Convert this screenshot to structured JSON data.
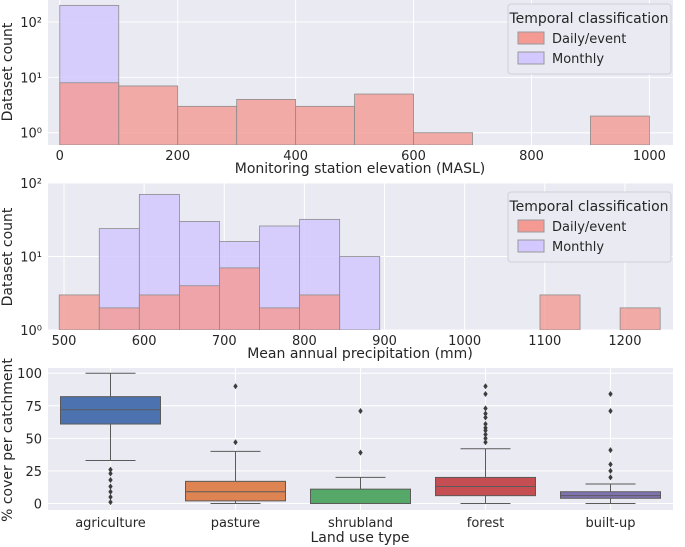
{
  "chart_data": [
    {
      "type": "bar",
      "subtype": "histogram",
      "xlabel": "Monitoring station elevation (MASL)",
      "ylabel": "Dataset count",
      "yscale": "log",
      "ylim": [
        0.6,
        250
      ],
      "xlim": [
        -20,
        1040
      ],
      "x_ticks": [
        0,
        200,
        400,
        600,
        800,
        1000
      ],
      "y_ticks": [
        {
          "value": 1,
          "label": "10⁰"
        },
        {
          "value": 10,
          "label": "10¹"
        },
        {
          "value": 100,
          "label": "10²"
        }
      ],
      "legend": {
        "title": "Temporal classification",
        "position": "top-right"
      },
      "series": [
        {
          "name": "Daily/event",
          "color": "#f49a92",
          "bins": [
            [
              0,
              100,
              8
            ],
            [
              100,
              200,
              7
            ],
            [
              200,
              300,
              3
            ],
            [
              300,
              400,
              4
            ],
            [
              400,
              500,
              3
            ],
            [
              500,
              600,
              5
            ],
            [
              600,
              700,
              1
            ],
            [
              900,
              1000,
              2
            ]
          ]
        },
        {
          "name": "Monthly",
          "color": "#d3c8ff",
          "bins": [
            [
              0,
              100,
              200
            ]
          ]
        }
      ]
    },
    {
      "type": "bar",
      "subtype": "histogram",
      "xlabel": "Mean annual precipitation (mm)",
      "ylabel": "Dataset count",
      "yscale": "log",
      "ylim": [
        1,
        100
      ],
      "xlim": [
        480,
        1260
      ],
      "x_ticks": [
        500,
        600,
        700,
        800,
        900,
        1000,
        1100,
        1200
      ],
      "y_ticks": [
        {
          "value": 1,
          "label": "10⁰"
        },
        {
          "value": 10,
          "label": "10¹"
        },
        {
          "value": 100,
          "label": "10²"
        }
      ],
      "legend": {
        "title": "Temporal classification",
        "position": "top-right"
      },
      "series": [
        {
          "name": "Daily/event",
          "color": "#f49a92",
          "bins": [
            [
              494,
              544,
              3
            ],
            [
              544,
              594,
              2
            ],
            [
              594,
              644,
              3
            ],
            [
              644,
              694,
              4
            ],
            [
              694,
              744,
              7
            ],
            [
              744,
              794,
              2
            ],
            [
              794,
              844,
              3
            ],
            [
              1094,
              1144,
              3
            ],
            [
              1194,
              1244,
              2
            ]
          ]
        },
        {
          "name": "Monthly",
          "color": "#d3c8ff",
          "bins": [
            [
              544,
              594,
              24
            ],
            [
              594,
              644,
              70
            ],
            [
              644,
              694,
              30
            ],
            [
              694,
              744,
              16
            ],
            [
              744,
              794,
              26
            ],
            [
              794,
              844,
              32
            ],
            [
              844,
              894,
              10
            ],
            [
              894,
              944,
              1
            ],
            [
              944,
              994,
              1
            ],
            [
              994,
              1044,
              1
            ]
          ]
        }
      ]
    },
    {
      "type": "box",
      "xlabel": "Land use type",
      "ylabel": "% cover per catchment",
      "ylim": [
        -5,
        104
      ],
      "y_ticks": [
        0,
        25,
        50,
        75,
        100
      ],
      "categories": [
        "agriculture",
        "pasture",
        "shrubland",
        "forest",
        "built-up"
      ],
      "boxes": [
        {
          "color": "#4c72b0",
          "q1": 61,
          "median": 72,
          "q3": 82,
          "whisker_low": 33,
          "whisker_high": 100,
          "outliers": [
            26,
            23,
            18,
            13,
            9,
            5,
            1
          ]
        },
        {
          "color": "#dd8452",
          "q1": 2,
          "median": 9,
          "q3": 17,
          "whisker_low": 0,
          "whisker_high": 40,
          "outliers": [
            47,
            90
          ]
        },
        {
          "color": "#55a868",
          "q1": 0,
          "median": 0,
          "q3": 11,
          "whisker_low": 0,
          "whisker_high": 20,
          "outliers": [
            39,
            71
          ]
        },
        {
          "color": "#c44e52",
          "q1": 6,
          "median": 13,
          "q3": 20,
          "whisker_low": 0,
          "whisker_high": 42,
          "outliers": [
            47,
            50,
            53,
            56,
            58,
            61,
            66,
            69,
            73,
            84,
            90
          ]
        },
        {
          "color": "#8172b3",
          "q1": 4,
          "median": 6,
          "q3": 9,
          "whisker_low": 0,
          "whisker_high": 15,
          "outliers": [
            20,
            25,
            30,
            41,
            71,
            84
          ]
        }
      ]
    }
  ]
}
